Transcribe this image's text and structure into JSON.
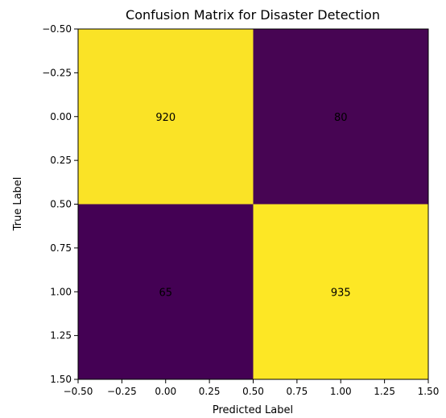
{
  "chart_data": {
    "type": "heatmap",
    "title": "Confusion Matrix for Disaster Detection",
    "xlabel": "Predicted Label",
    "ylabel": "True Label",
    "xlim": [
      -0.5,
      1.5
    ],
    "ylim": [
      1.5,
      -0.5
    ],
    "xticks": [
      "-0.50",
      "-0.25",
      "0.00",
      "0.25",
      "0.50",
      "0.75",
      "1.00",
      "1.25",
      "1.50"
    ],
    "yticks": [
      "-0.50",
      "-0.25",
      "0.00",
      "0.25",
      "0.50",
      "0.75",
      "1.00",
      "1.25",
      "1.50"
    ],
    "matrix": [
      [
        920,
        80
      ],
      [
        65,
        935
      ]
    ],
    "colormap": {
      "low": "#440154",
      "high": "#fde725"
    }
  }
}
